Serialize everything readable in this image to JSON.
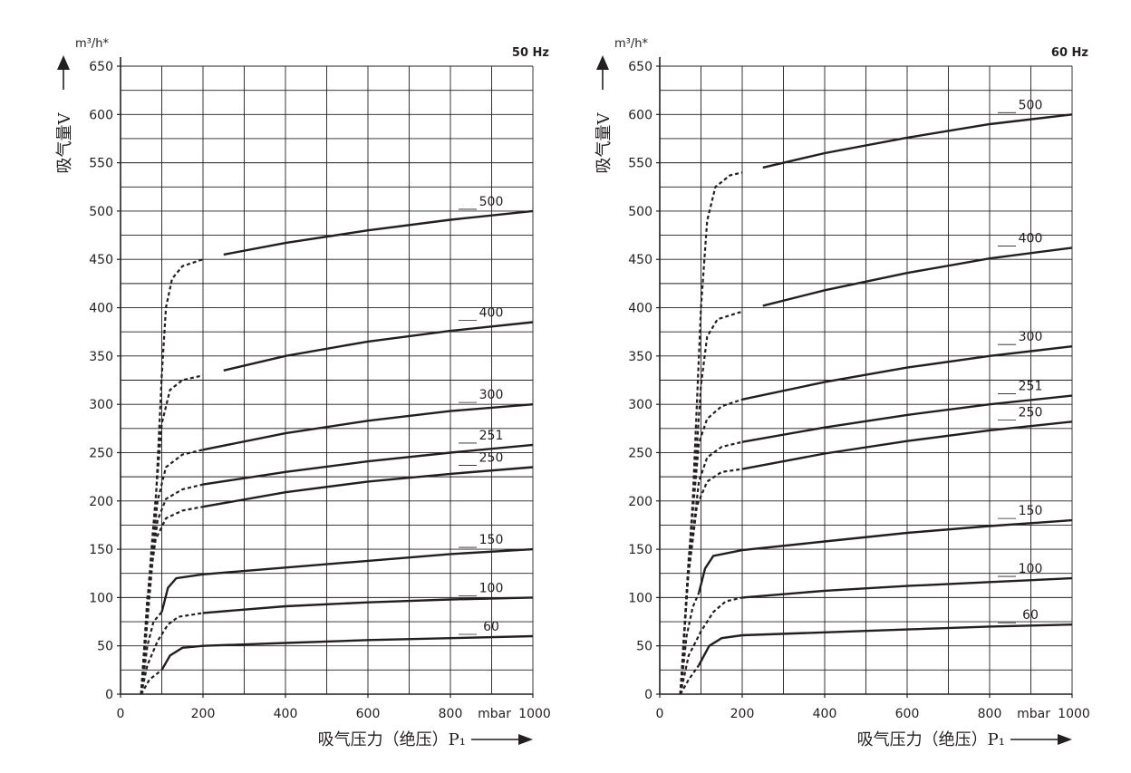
{
  "chart_data": [
    {
      "type": "line",
      "frequency_label": "50 Hz",
      "y_unit": "m³/h*",
      "ylabel": "吸气量V",
      "xlabel": "吸气压力（绝压）P₁",
      "x_unit": "mbar",
      "xlim": [
        0,
        1000
      ],
      "ylim": [
        0,
        650
      ],
      "x_ticks": [
        "0",
        "200",
        "400",
        "600",
        "800",
        "1000"
      ],
      "y_ticks": [
        "0",
        "50",
        "100",
        "150",
        "200",
        "250",
        "300",
        "350",
        "400",
        "450",
        "500",
        "550",
        "600",
        "650"
      ],
      "grid": true,
      "series": [
        {
          "name": "500",
          "dashed": [
            [
              50,
              0
            ],
            [
              80,
              150
            ],
            [
              100,
              330
            ],
            [
              110,
              400
            ],
            [
              125,
              430
            ],
            [
              150,
              443
            ],
            [
              200,
              450
            ]
          ],
          "solid": [
            [
              250,
              455
            ],
            [
              400,
              467
            ],
            [
              600,
              480
            ],
            [
              800,
              491
            ],
            [
              1000,
              500
            ]
          ]
        },
        {
          "name": "400",
          "dashed": [
            [
              50,
              0
            ],
            [
              75,
              150
            ],
            [
              100,
              280
            ],
            [
              120,
              315
            ],
            [
              150,
              325
            ],
            [
              200,
              330
            ]
          ],
          "solid": [
            [
              250,
              335
            ],
            [
              400,
              350
            ],
            [
              600,
              365
            ],
            [
              800,
              376
            ],
            [
              1000,
              385
            ]
          ]
        },
        {
          "name": "300",
          "dashed": [
            [
              50,
              0
            ],
            [
              70,
              120
            ],
            [
              90,
              200
            ],
            [
              110,
              235
            ],
            [
              150,
              248
            ],
            [
              200,
              253
            ]
          ],
          "solid": [
            [
              200,
              253
            ],
            [
              400,
              270
            ],
            [
              600,
              283
            ],
            [
              800,
              293
            ],
            [
              1000,
              300
            ]
          ]
        },
        {
          "name": "251",
          "dashed": [
            [
              50,
              0
            ],
            [
              68,
              110
            ],
            [
              90,
              180
            ],
            [
              110,
              202
            ],
            [
              150,
              212
            ],
            [
              200,
              217
            ]
          ],
          "solid": [
            [
              200,
              217
            ],
            [
              400,
              230
            ],
            [
              600,
              241
            ],
            [
              800,
              250
            ],
            [
              1000,
              258
            ]
          ]
        },
        {
          "name": "250",
          "dashed": [
            [
              50,
              0
            ],
            [
              65,
              100
            ],
            [
              85,
              160
            ],
            [
              110,
              182
            ],
            [
              150,
              190
            ],
            [
              200,
              194
            ]
          ],
          "solid": [
            [
              200,
              194
            ],
            [
              400,
              209
            ],
            [
              600,
              220
            ],
            [
              800,
              228
            ],
            [
              1000,
              235
            ]
          ]
        },
        {
          "name": "150",
          "dashed": [
            [
              50,
              0
            ],
            [
              65,
              50
            ],
            [
              80,
              75
            ],
            [
              100,
              85
            ]
          ],
          "solid": [
            [
              100,
              85
            ],
            [
              115,
              110
            ],
            [
              135,
              120
            ],
            [
              200,
              124
            ],
            [
              400,
              131
            ],
            [
              600,
              138
            ],
            [
              800,
              145
            ],
            [
              1000,
              150
            ]
          ]
        },
        {
          "name": "100",
          "dashed": [
            [
              50,
              0
            ],
            [
              65,
              30
            ],
            [
              90,
              55
            ],
            [
              115,
              72
            ],
            [
              140,
              80
            ],
            [
              200,
              84
            ]
          ],
          "solid": [
            [
              200,
              84
            ],
            [
              400,
              91
            ],
            [
              600,
              95
            ],
            [
              800,
              98
            ],
            [
              1000,
              100
            ]
          ]
        },
        {
          "name": "60",
          "dashed": [
            [
              50,
              0
            ],
            [
              70,
              15
            ],
            [
              100,
              25
            ]
          ],
          "solid": [
            [
              100,
              25
            ],
            [
              120,
              40
            ],
            [
              150,
              48
            ],
            [
              200,
              50
            ],
            [
              400,
              53
            ],
            [
              600,
              56
            ],
            [
              800,
              58
            ],
            [
              1000,
              60
            ]
          ]
        }
      ]
    },
    {
      "type": "line",
      "frequency_label": "60 Hz",
      "y_unit": "m³/h*",
      "ylabel": "吸气量V",
      "xlabel": "吸气压力（绝压）P₁",
      "x_unit": "mbar",
      "xlim": [
        0,
        1000
      ],
      "ylim": [
        0,
        650
      ],
      "x_ticks": [
        "0",
        "200",
        "400",
        "600",
        "800",
        "1000"
      ],
      "y_ticks": [
        "0",
        "50",
        "100",
        "150",
        "200",
        "250",
        "300",
        "350",
        "400",
        "450",
        "500",
        "550",
        "600",
        "650"
      ],
      "grid": true,
      "series": [
        {
          "name": "500",
          "dashed": [
            [
              50,
              0
            ],
            [
              80,
              200
            ],
            [
              100,
              400
            ],
            [
              115,
              490
            ],
            [
              135,
              525
            ],
            [
              170,
              537
            ],
            [
              200,
              540
            ]
          ],
          "solid": [
            [
              250,
              545
            ],
            [
              400,
              560
            ],
            [
              600,
              576
            ],
            [
              800,
              590
            ],
            [
              1000,
              600
            ]
          ]
        },
        {
          "name": "400",
          "dashed": [
            [
              50,
              0
            ],
            [
              75,
              160
            ],
            [
              100,
              320
            ],
            [
              115,
              370
            ],
            [
              140,
              388
            ],
            [
              200,
              396
            ]
          ],
          "solid": [
            [
              250,
              402
            ],
            [
              400,
              418
            ],
            [
              600,
              436
            ],
            [
              800,
              451
            ],
            [
              1000,
              462
            ]
          ]
        },
        {
          "name": "300",
          "dashed": [
            [
              50,
              0
            ],
            [
              70,
              140
            ],
            [
              95,
              260
            ],
            [
              115,
              285
            ],
            [
              150,
              298
            ],
            [
              200,
              305
            ]
          ],
          "solid": [
            [
              200,
              305
            ],
            [
              400,
              323
            ],
            [
              600,
              338
            ],
            [
              800,
              350
            ],
            [
              1000,
              360
            ]
          ]
        },
        {
          "name": "251",
          "dashed": [
            [
              50,
              0
            ],
            [
              68,
              120
            ],
            [
              95,
              220
            ],
            [
              115,
              245
            ],
            [
              150,
              256
            ],
            [
              200,
              261
            ]
          ],
          "solid": [
            [
              200,
              261
            ],
            [
              400,
              276
            ],
            [
              600,
              289
            ],
            [
              800,
              300
            ],
            [
              1000,
              309
            ]
          ]
        },
        {
          "name": "250",
          "dashed": [
            [
              50,
              0
            ],
            [
              66,
              110
            ],
            [
              90,
              195
            ],
            [
              115,
              220
            ],
            [
              150,
              230
            ],
            [
              200,
              233
            ]
          ],
          "solid": [
            [
              200,
              233
            ],
            [
              400,
              249
            ],
            [
              600,
              262
            ],
            [
              800,
              273
            ],
            [
              1000,
              282
            ]
          ]
        },
        {
          "name": "150",
          "dashed": [
            [
              50,
              0
            ],
            [
              65,
              60
            ],
            [
              80,
              90
            ],
            [
              95,
              105
            ]
          ],
          "solid": [
            [
              95,
              105
            ],
            [
              110,
              130
            ],
            [
              130,
              143
            ],
            [
              200,
              149
            ],
            [
              400,
              158
            ],
            [
              600,
              167
            ],
            [
              800,
              174
            ],
            [
              1000,
              180
            ]
          ]
        },
        {
          "name": "100",
          "dashed": [
            [
              50,
              0
            ],
            [
              70,
              40
            ],
            [
              100,
              65
            ],
            [
              130,
              85
            ],
            [
              160,
              96
            ],
            [
              200,
              100
            ]
          ],
          "solid": [
            [
              200,
              100
            ],
            [
              400,
              107
            ],
            [
              600,
              112
            ],
            [
              800,
              116
            ],
            [
              1000,
              120
            ]
          ]
        },
        {
          "name": "60",
          "dashed": [
            [
              50,
              0
            ],
            [
              70,
              15
            ],
            [
              95,
              30
            ]
          ],
          "solid": [
            [
              95,
              30
            ],
            [
              120,
              50
            ],
            [
              150,
              58
            ],
            [
              200,
              61
            ],
            [
              400,
              64
            ],
            [
              600,
              67
            ],
            [
              800,
              70
            ],
            [
              1000,
              72
            ]
          ]
        }
      ]
    }
  ]
}
